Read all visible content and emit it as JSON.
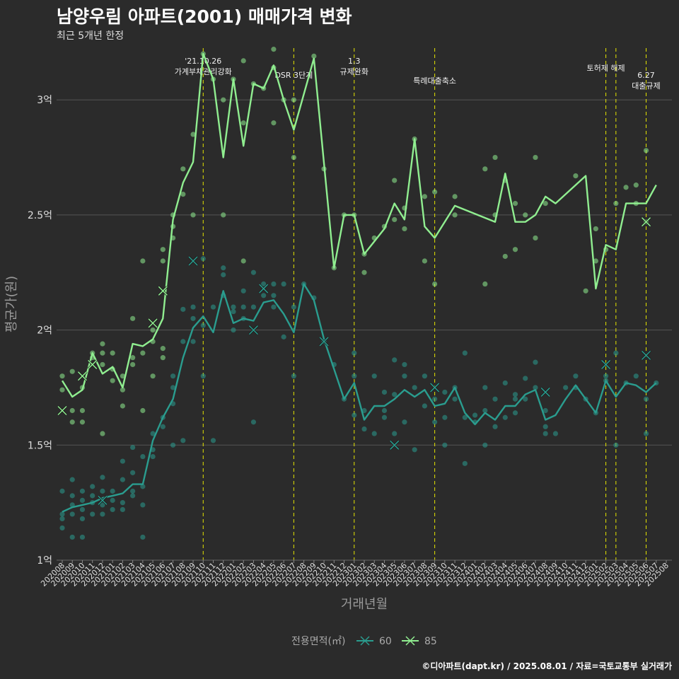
{
  "title": "남양우림 아파트(2001) 매매가격 변화",
  "subtitle": "최근 5개년 한정",
  "footer": "©디아파트(dapt.kr) / 2025.08.01 / 자료=국토교통부 실거래가",
  "colors": {
    "background": "#2b2b2b",
    "grid": "#555555",
    "event_line": "#e6e600",
    "series_60": "#2a9d8f",
    "series_85": "#90ee90"
  },
  "chart_data": {
    "type": "line",
    "xlabel": "거래년월",
    "ylabel": "평균가(원)",
    "ylim": [
      1.0,
      3.2
    ],
    "y_ticks": [
      {
        "v": 1.0,
        "label": "1억"
      },
      {
        "v": 1.5,
        "label": "1.5억"
      },
      {
        "v": 2.0,
        "label": "2억"
      },
      {
        "v": 2.5,
        "label": "2.5억"
      },
      {
        "v": 3.0,
        "label": "3억"
      }
    ],
    "x": [
      "202008",
      "202009",
      "202010",
      "202011",
      "202012",
      "202101",
      "202102",
      "202103",
      "202104",
      "202105",
      "202106",
      "202107",
      "202108",
      "202109",
      "202110",
      "202111",
      "202112",
      "202201",
      "202202",
      "202203",
      "202204",
      "202205",
      "202206",
      "202207",
      "202208",
      "202209",
      "202210",
      "202211",
      "202212",
      "202301",
      "202302",
      "202303",
      "202304",
      "202305",
      "202306",
      "202307",
      "202308",
      "202309",
      "202310",
      "202311",
      "202312",
      "202401",
      "202402",
      "202403",
      "202404",
      "202405",
      "202406",
      "202407",
      "202408",
      "202409",
      "202410",
      "202411",
      "202412",
      "202501",
      "202502",
      "202503",
      "202504",
      "202505",
      "202506",
      "202507",
      "202508"
    ],
    "legend": {
      "title": "전용면적(㎡)",
      "position": "bottom",
      "entries": [
        "60",
        "85"
      ]
    },
    "events": [
      {
        "x": "202110",
        "label": "'21.10.26\n가계부채관리강화"
      },
      {
        "x": "202207",
        "label": "DSR 3단계"
      },
      {
        "x": "202301",
        "label": "1.3\n규제완화"
      },
      {
        "x": "202309",
        "label": "특례대출축소"
      },
      {
        "x": "202502",
        "label": "토허제 해제"
      },
      {
        "x": "202503",
        "label": ""
      },
      {
        "x": "202506",
        "label": "6.27\n대출규제"
      }
    ],
    "series": [
      {
        "name": "60",
        "values": [
          1.21,
          1.23,
          1.24,
          1.25,
          1.27,
          1.28,
          1.29,
          1.33,
          1.33,
          1.52,
          1.62,
          1.7,
          1.88,
          2.01,
          2.06,
          1.99,
          2.17,
          2.03,
          2.05,
          2.04,
          2.12,
          2.13,
          2.07,
          1.99,
          2.2,
          2.13,
          1.96,
          1.83,
          1.7,
          1.77,
          1.61,
          1.67,
          1.67,
          1.7,
          1.74,
          1.71,
          1.74,
          1.67,
          1.68,
          1.75,
          1.64,
          1.59,
          1.64,
          1.61,
          1.67,
          1.67,
          1.72,
          1.74,
          1.61,
          1.63,
          1.7,
          1.76,
          1.7,
          1.64,
          1.78,
          1.71,
          1.77,
          1.76,
          1.73,
          1.77,
          null
        ]
      },
      {
        "name": "85",
        "values": [
          1.78,
          1.71,
          1.74,
          1.9,
          1.81,
          1.84,
          1.75,
          1.94,
          1.93,
          1.96,
          2.05,
          2.48,
          2.64,
          2.73,
          3.2,
          3.09,
          2.75,
          3.09,
          2.8,
          3.07,
          3.05,
          3.15,
          3.0,
          2.87,
          null,
          3.18,
          null,
          2.27,
          2.5,
          2.5,
          2.33,
          null,
          2.44,
          2.55,
          2.48,
          2.83,
          2.45,
          2.4,
          null,
          2.54,
          null,
          null,
          null,
          2.47,
          2.68,
          2.47,
          2.47,
          2.5,
          2.58,
          2.55,
          null,
          null,
          2.67,
          2.18,
          2.37,
          2.35,
          2.55,
          2.55,
          2.55,
          2.63,
          null
        ]
      }
    ],
    "markers_x": [
      {
        "series": "60",
        "x": "202012",
        "y": 1.26
      },
      {
        "series": "60",
        "x": "202109",
        "y": 2.3
      },
      {
        "series": "60",
        "x": "202203",
        "y": 2.0
      },
      {
        "series": "60",
        "x": "202204",
        "y": 2.18
      },
      {
        "series": "60",
        "x": "202210",
        "y": 1.95
      },
      {
        "series": "60",
        "x": "202305",
        "y": 1.5
      },
      {
        "series": "60",
        "x": "202309",
        "y": 1.75
      },
      {
        "series": "60",
        "x": "202408",
        "y": 1.73
      },
      {
        "series": "60",
        "x": "202502",
        "y": 1.85
      },
      {
        "series": "60",
        "x": "202506",
        "y": 1.89
      },
      {
        "series": "85",
        "x": "202008",
        "y": 1.65
      },
      {
        "series": "85",
        "x": "202010",
        "y": 1.8
      },
      {
        "series": "85",
        "x": "202011",
        "y": 1.85
      },
      {
        "series": "85",
        "x": "202105",
        "y": 2.03
      },
      {
        "series": "85",
        "x": "202106",
        "y": 2.17
      },
      {
        "series": "85",
        "x": "202506",
        "y": 2.47
      }
    ],
    "points_60": [
      [
        0,
        1.18
      ],
      [
        0,
        1.14
      ],
      [
        0,
        1.3
      ],
      [
        0,
        1.2
      ],
      [
        1,
        1.1
      ],
      [
        1,
        1.24
      ],
      [
        1,
        1.35
      ],
      [
        1,
        1.28
      ],
      [
        1,
        1.2
      ],
      [
        2,
        1.18
      ],
      [
        2,
        1.3
      ],
      [
        2,
        1.1
      ],
      [
        2,
        1.22
      ],
      [
        2,
        1.26
      ],
      [
        3,
        1.25
      ],
      [
        3,
        1.28
      ],
      [
        3,
        1.2
      ],
      [
        3,
        1.32
      ],
      [
        4,
        1.2
      ],
      [
        4,
        1.24
      ],
      [
        4,
        1.3
      ],
      [
        4,
        1.36
      ],
      [
        5,
        1.3
      ],
      [
        5,
        1.22
      ],
      [
        5,
        1.26
      ],
      [
        6,
        1.25
      ],
      [
        6,
        1.43
      ],
      [
        6,
        1.35
      ],
      [
        6,
        1.22
      ],
      [
        7,
        1.3
      ],
      [
        7,
        1.38
      ],
      [
        7,
        1.49
      ],
      [
        7,
        1.28
      ],
      [
        8,
        1.1
      ],
      [
        8,
        1.45
      ],
      [
        8,
        1.24
      ],
      [
        8,
        1.32
      ],
      [
        9,
        1.48
      ],
      [
        9,
        1.55
      ],
      [
        9,
        1.45
      ],
      [
        10,
        1.62
      ],
      [
        10,
        1.58
      ],
      [
        11,
        1.75
      ],
      [
        11,
        1.68
      ],
      [
        11,
        1.8
      ],
      [
        11,
        1.5
      ],
      [
        12,
        1.95
      ],
      [
        12,
        1.52
      ],
      [
        12,
        2.09
      ],
      [
        13,
        1.95
      ],
      [
        13,
        2.05
      ],
      [
        13,
        2.1
      ],
      [
        14,
        2.31
      ],
      [
        14,
        2.02
      ],
      [
        14,
        1.8
      ],
      [
        15,
        1.52
      ],
      [
        15,
        2.1
      ],
      [
        16,
        2.27
      ],
      [
        16,
        2.15
      ],
      [
        16,
        2.24
      ],
      [
        17,
        2.1
      ],
      [
        17,
        2.0
      ],
      [
        17,
        2.08
      ],
      [
        18,
        2.05
      ],
      [
        18,
        2.17
      ],
      [
        18,
        2.1
      ],
      [
        19,
        1.6
      ],
      [
        19,
        2.25
      ],
      [
        19,
        2.1
      ],
      [
        20,
        2.15
      ],
      [
        20,
        2.2
      ],
      [
        21,
        2.2
      ],
      [
        21,
        2.15
      ],
      [
        21,
        2.1
      ],
      [
        22,
        2.2
      ],
      [
        22,
        1.97
      ],
      [
        23,
        2.1
      ],
      [
        23,
        1.8
      ],
      [
        24,
        2.2
      ],
      [
        25,
        2.14
      ],
      [
        26,
        1.95
      ],
      [
        27,
        1.85
      ],
      [
        28,
        1.7
      ],
      [
        29,
        1.63
      ],
      [
        29,
        1.9
      ],
      [
        29,
        1.8
      ],
      [
        30,
        1.57
      ],
      [
        30,
        1.65
      ],
      [
        31,
        1.55
      ],
      [
        31,
        1.8
      ],
      [
        32,
        1.65
      ],
      [
        32,
        1.62
      ],
      [
        32,
        1.73
      ],
      [
        33,
        1.87
      ],
      [
        33,
        1.55
      ],
      [
        33,
        1.72
      ],
      [
        34,
        1.85
      ],
      [
        34,
        1.8
      ],
      [
        34,
        1.6
      ],
      [
        35,
        1.48
      ],
      [
        35,
        1.75
      ],
      [
        36,
        1.67
      ],
      [
        36,
        1.8
      ],
      [
        37,
        1.6
      ],
      [
        37,
        1.7
      ],
      [
        38,
        1.73
      ],
      [
        38,
        1.5
      ],
      [
        38,
        1.62
      ],
      [
        39,
        1.7
      ],
      [
        39,
        1.75
      ],
      [
        40,
        1.9
      ],
      [
        40,
        1.42
      ],
      [
        40,
        1.62
      ],
      [
        41,
        1.63
      ],
      [
        41,
        1.6
      ],
      [
        42,
        1.65
      ],
      [
        42,
        1.5
      ],
      [
        42,
        1.75
      ],
      [
        43,
        1.7
      ],
      [
        43,
        1.58
      ],
      [
        44,
        1.62
      ],
      [
        44,
        1.77
      ],
      [
        45,
        1.7
      ],
      [
        45,
        1.72
      ],
      [
        45,
        1.64
      ],
      [
        46,
        1.79
      ],
      [
        46,
        1.7
      ],
      [
        47,
        1.86
      ],
      [
        47,
        1.75
      ],
      [
        48,
        1.55
      ],
      [
        48,
        1.65
      ],
      [
        48,
        1.58
      ],
      [
        49,
        1.55
      ],
      [
        50,
        1.75
      ],
      [
        51,
        1.8
      ],
      [
        51,
        1.75
      ],
      [
        52,
        1.7
      ],
      [
        53,
        1.64
      ],
      [
        54,
        1.78
      ],
      [
        54,
        1.8
      ],
      [
        55,
        1.5
      ],
      [
        55,
        1.9
      ],
      [
        56,
        1.77
      ],
      [
        57,
        1.8
      ],
      [
        58,
        1.55
      ],
      [
        58,
        1.7
      ],
      [
        59,
        1.77
      ]
    ],
    "points_85": [
      [
        0,
        1.8
      ],
      [
        0,
        1.74
      ],
      [
        1,
        1.65
      ],
      [
        1,
        1.82
      ],
      [
        1,
        1.6
      ],
      [
        2,
        1.65
      ],
      [
        2,
        1.75
      ],
      [
        2,
        1.6
      ],
      [
        3,
        1.9
      ],
      [
        3,
        1.88
      ],
      [
        4,
        1.9
      ],
      [
        4,
        1.55
      ],
      [
        4,
        1.85
      ],
      [
        4,
        1.94
      ],
      [
        5,
        1.9
      ],
      [
        5,
        1.78
      ],
      [
        5,
        1.83
      ],
      [
        6,
        1.74
      ],
      [
        6,
        1.67
      ],
      [
        6,
        1.8
      ],
      [
        7,
        2.05
      ],
      [
        7,
        1.88
      ],
      [
        7,
        1.85
      ],
      [
        8,
        2.3
      ],
      [
        8,
        1.9
      ],
      [
        8,
        1.65
      ],
      [
        9,
        2.0
      ],
      [
        9,
        1.95
      ],
      [
        9,
        1.8
      ],
      [
        10,
        2.35
      ],
      [
        10,
        1.92
      ],
      [
        10,
        1.88
      ],
      [
        10,
        2.3
      ],
      [
        11,
        2.45
      ],
      [
        11,
        2.4
      ],
      [
        11,
        2.5
      ],
      [
        12,
        2.7
      ],
      [
        12,
        2.59
      ],
      [
        13,
        2.85
      ],
      [
        13,
        2.5
      ],
      [
        14,
        3.2
      ],
      [
        15,
        3.09
      ],
      [
        16,
        3.0
      ],
      [
        16,
        2.5
      ],
      [
        17,
        3.09
      ],
      [
        18,
        3.17
      ],
      [
        18,
        2.9
      ],
      [
        18,
        2.3
      ],
      [
        19,
        3.07
      ],
      [
        20,
        3.05
      ],
      [
        21,
        3.22
      ],
      [
        21,
        3.14
      ],
      [
        21,
        2.9
      ],
      [
        22,
        3.0
      ],
      [
        23,
        3.0
      ],
      [
        23,
        2.75
      ],
      [
        25,
        3.19
      ],
      [
        26,
        2.7
      ],
      [
        27,
        2.27
      ],
      [
        28,
        2.5
      ],
      [
        29,
        2.5
      ],
      [
        30,
        2.33
      ],
      [
        30,
        2.25
      ],
      [
        31,
        2.4
      ],
      [
        32,
        2.45
      ],
      [
        33,
        2.65
      ],
      [
        33,
        2.48
      ],
      [
        34,
        2.53
      ],
      [
        34,
        2.44
      ],
      [
        35,
        2.83
      ],
      [
        36,
        2.58
      ],
      [
        36,
        2.3
      ],
      [
        37,
        2.6
      ],
      [
        37,
        2.2
      ],
      [
        39,
        2.58
      ],
      [
        39,
        2.5
      ],
      [
        42,
        2.2
      ],
      [
        42,
        2.7
      ],
      [
        43,
        2.75
      ],
      [
        43,
        2.5
      ],
      [
        44,
        2.65
      ],
      [
        44,
        2.32
      ],
      [
        45,
        2.35
      ],
      [
        45,
        2.55
      ],
      [
        46,
        2.5
      ],
      [
        47,
        2.75
      ],
      [
        47,
        2.4
      ],
      [
        48,
        2.55
      ],
      [
        51,
        2.67
      ],
      [
        52,
        2.17
      ],
      [
        53,
        2.44
      ],
      [
        53,
        2.3
      ],
      [
        54,
        2.35
      ],
      [
        55,
        2.55
      ],
      [
        56,
        2.62
      ],
      [
        57,
        2.63
      ],
      [
        57,
        2.55
      ],
      [
        58,
        2.47
      ],
      [
        58,
        2.78
      ]
    ]
  }
}
